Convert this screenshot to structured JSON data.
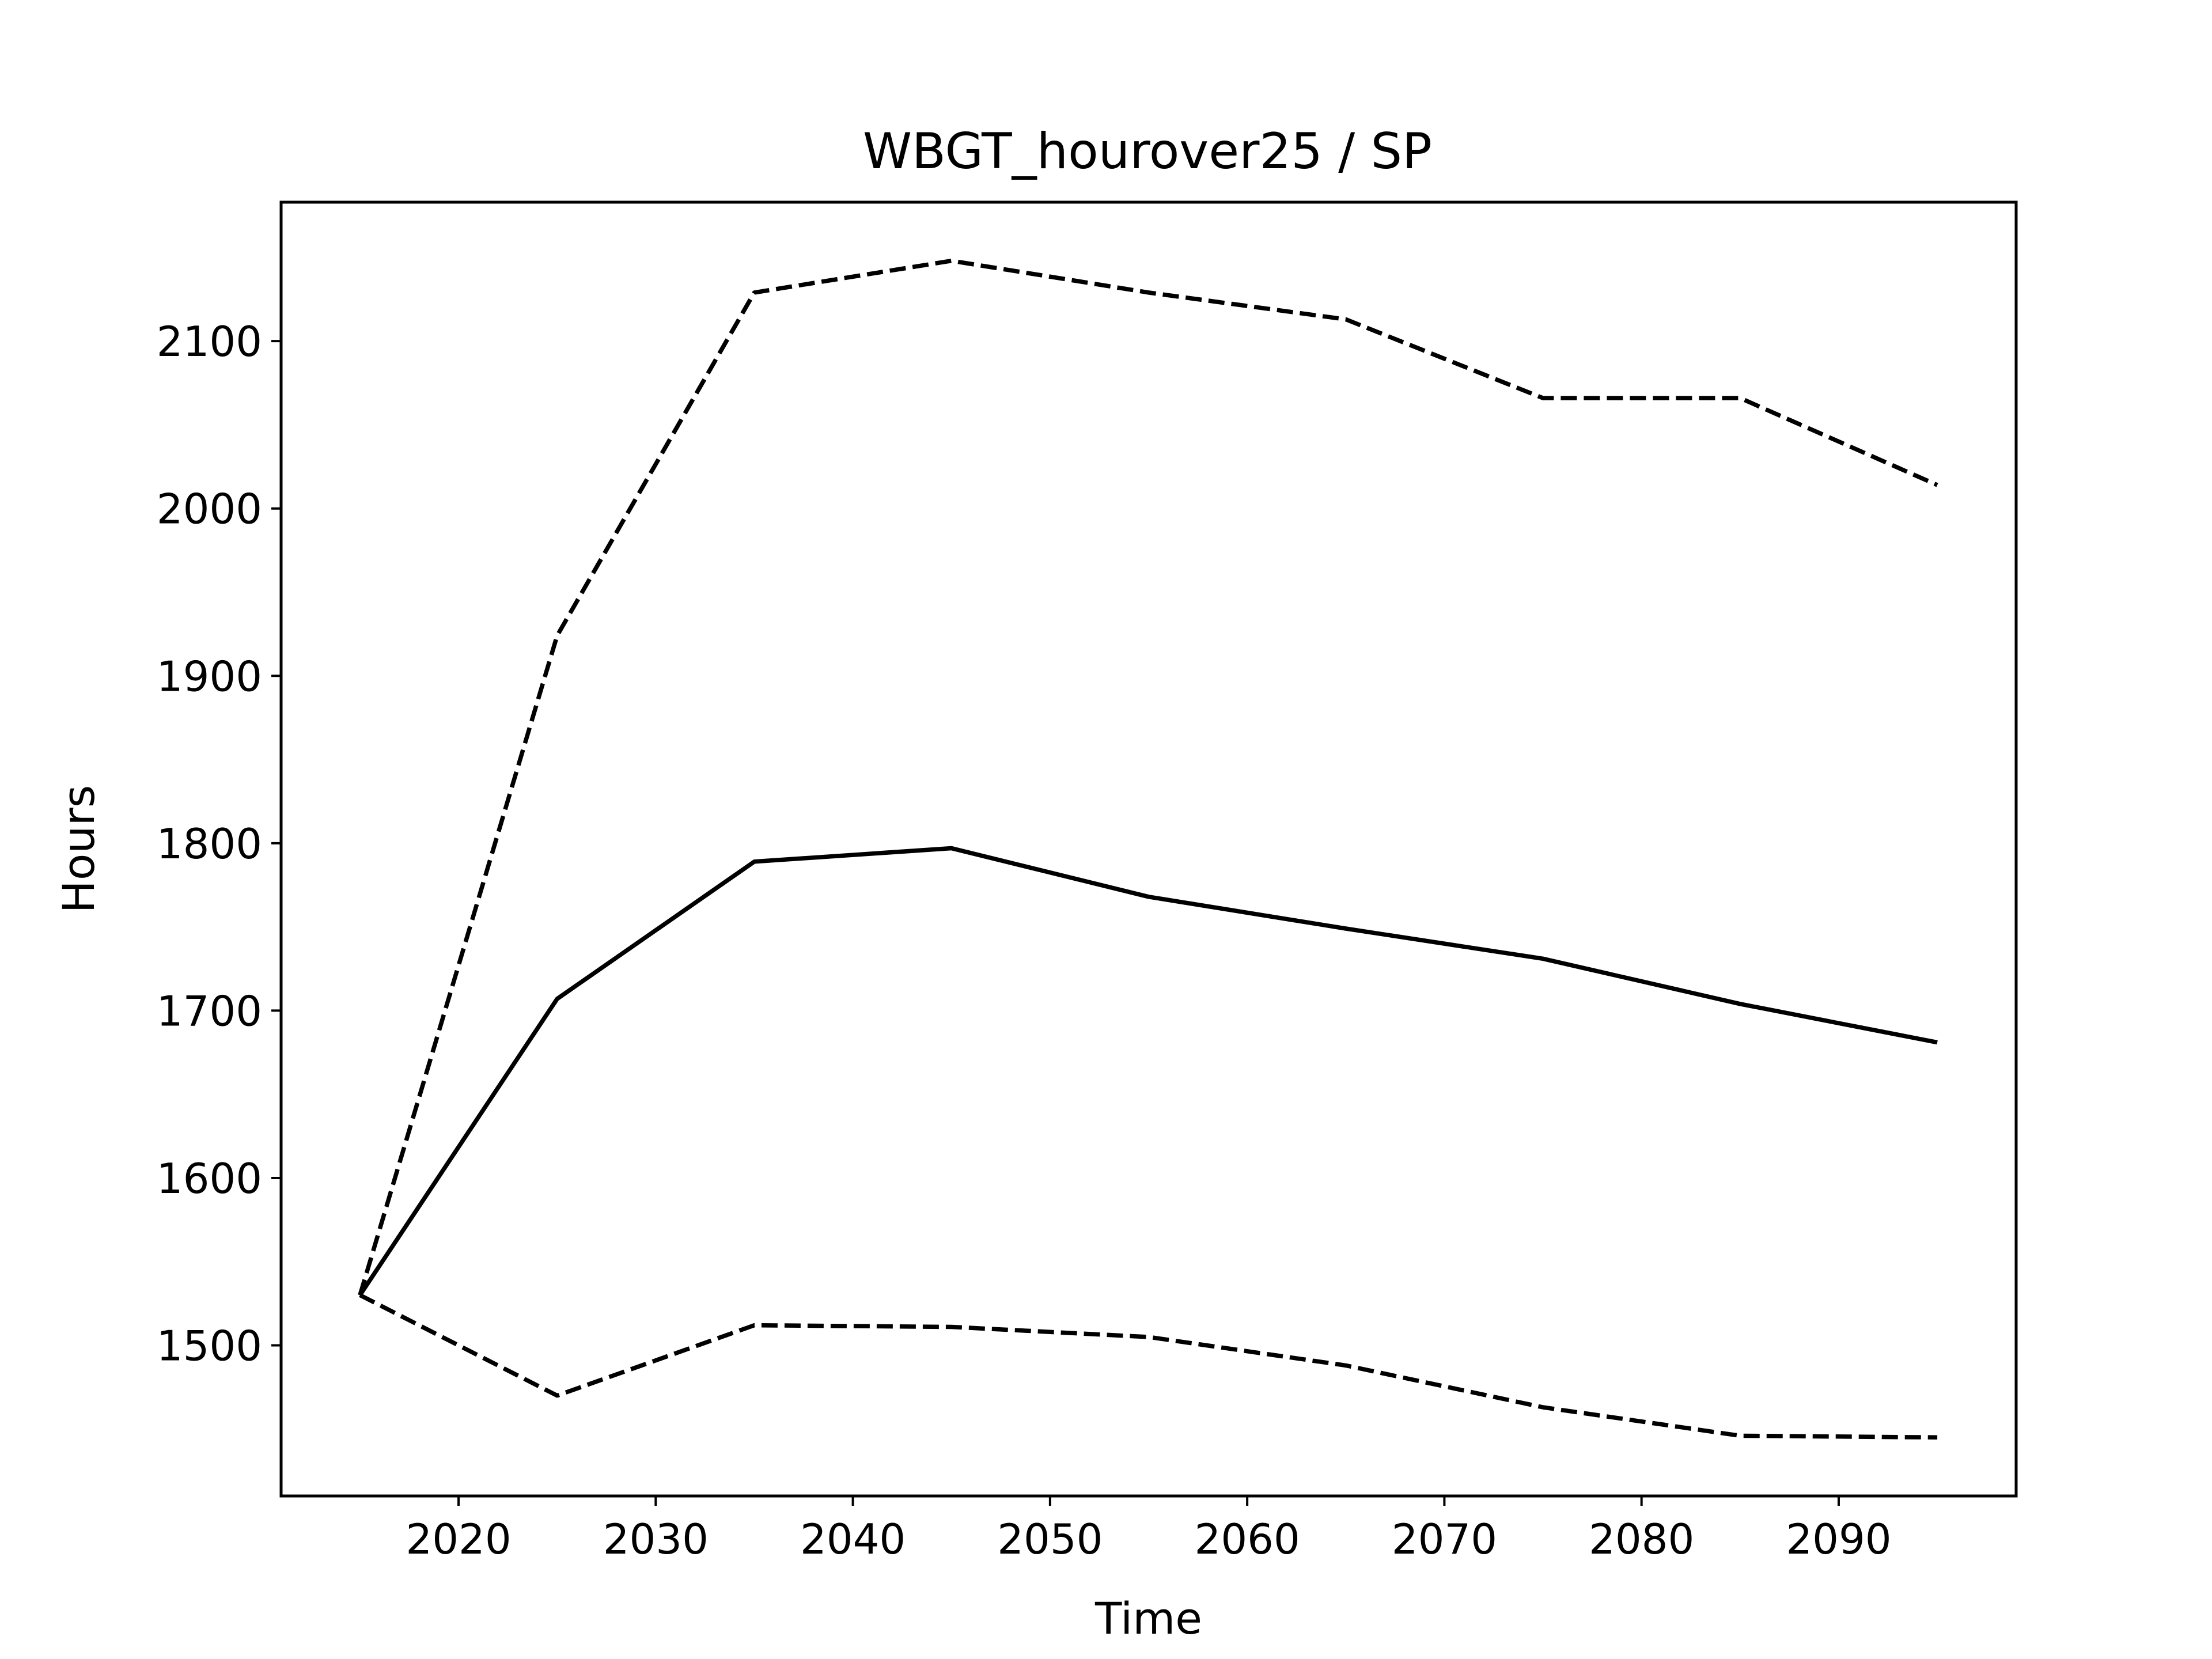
{
  "chart_data": {
    "type": "line",
    "title": "WBGT_hourover25 / SP",
    "xlabel": "Time",
    "ylabel": "Hours",
    "xlim": [
      2011,
      2099
    ],
    "ylim": [
      1410,
      2183
    ],
    "x_ticks": [
      2020,
      2030,
      2040,
      2050,
      2060,
      2070,
      2080,
      2090
    ],
    "y_ticks": [
      1500,
      1600,
      1700,
      1800,
      1900,
      2000,
      2100
    ],
    "grid": false,
    "x": [
      2015,
      2025,
      2035,
      2045,
      2055,
      2065,
      2075,
      2085,
      2095
    ],
    "series": [
      {
        "style": "solid",
        "values": [
          1530,
          1707,
          1789,
          1797,
          1768,
          1749,
          1731,
          1704,
          1681
        ]
      },
      {
        "style": "dashed",
        "values": [
          1530,
          1924,
          2129,
          2148,
          2129,
          2113,
          2066,
          2066,
          2014
        ]
      },
      {
        "style": "dashed",
        "values": [
          1530,
          1470,
          1512,
          1511,
          1505,
          1488,
          1463,
          1446,
          1445
        ]
      }
    ],
    "line_color": "#000000"
  }
}
